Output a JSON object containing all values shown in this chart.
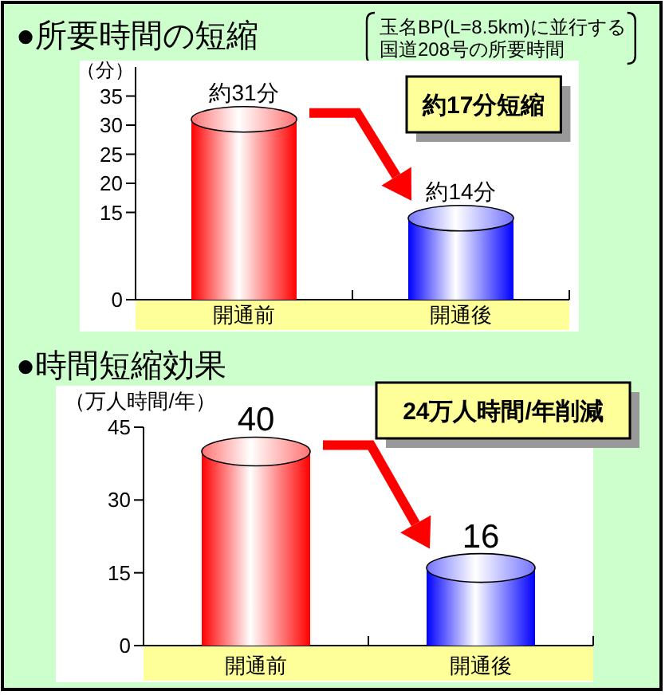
{
  "chart_data": [
    {
      "type": "bar",
      "title": "●所要時間の短縮",
      "subtitle": "玉名BP(L=8.5km)に並行する国道208号の所要時間",
      "ylabel": "（分）",
      "categories": [
        "開通前",
        "開通後"
      ],
      "values": [
        31,
        14
      ],
      "colors": [
        "#ff0000",
        "#0000ff"
      ],
      "value_labels": [
        "約31分",
        "約14分"
      ],
      "ylim": [
        0,
        40
      ],
      "yticks": [
        0,
        15,
        20,
        25,
        30,
        35
      ],
      "annotations": [
        "約17分短縮"
      ]
    },
    {
      "type": "bar",
      "title": "●時間短縮効果",
      "ylabel": "（万人時間/年）",
      "categories": [
        "開通前",
        "開通後"
      ],
      "values": [
        40,
        16
      ],
      "colors": [
        "#ff0000",
        "#0000ff"
      ],
      "data_labels": true,
      "ylim": [
        0,
        45
      ],
      "yticks": [
        0,
        15,
        30,
        45
      ],
      "annotations": [
        "24万人時間/年削減"
      ]
    }
  ]
}
